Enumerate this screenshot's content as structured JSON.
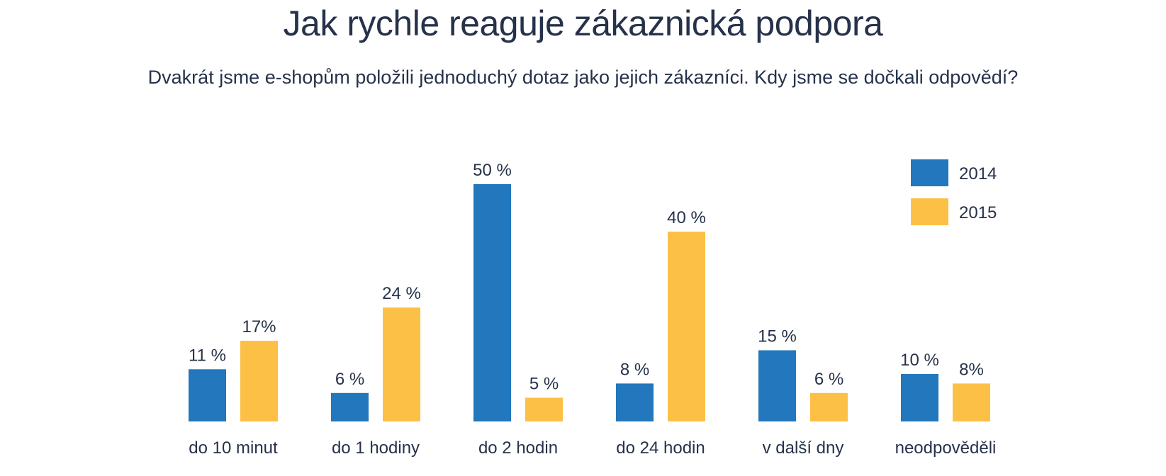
{
  "chart_data": {
    "type": "bar",
    "title": "Jak rychle reaguje zákaznická podpora",
    "subtitle": "Dvakrát jsme e-shopům položili jednoduchý dotaz jako jejich zákazníci. Kdy jsme se dočkali odpovědí?",
    "categories": [
      "do 10 minut",
      "do 1 hodiny",
      "do 2 hodin",
      "do 24 hodin",
      "v další dny",
      "neodpověděli"
    ],
    "series": [
      {
        "name": "2014",
        "color": "#2277bd",
        "values": [
          11,
          6,
          50,
          8,
          15,
          10
        ],
        "labels": [
          "11 %",
          "6 %",
          "50 %",
          "8 %",
          "15 %",
          "10 %"
        ]
      },
      {
        "name": "2015",
        "color": "#fdc046",
        "values": [
          17,
          24,
          5,
          40,
          6,
          8
        ],
        "labels": [
          "17%",
          "24 %",
          "5 %",
          "40 %",
          "6 %",
          "8%"
        ]
      }
    ],
    "ylim": [
      0,
      50
    ],
    "grid": false,
    "legend": "top-right",
    "xlabel": "",
    "ylabel": ""
  }
}
